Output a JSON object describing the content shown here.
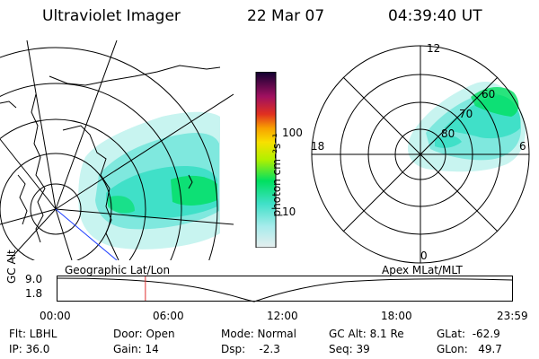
{
  "header": {
    "title": "Ultraviolet Imager",
    "date": "22 Mar 07",
    "time": "04:39:40 UT"
  },
  "colorbar": {
    "unit_label": "photon cm⁻²s⁻¹",
    "ticks": [
      "100",
      "10"
    ]
  },
  "polar_plot": {
    "mlt_labels": {
      "top": "12",
      "left": "18",
      "right": "6",
      "bottom": "0"
    },
    "mlat_labels": [
      "60",
      "70",
      "80"
    ]
  },
  "altitude_panel": {
    "axis_label": "GC Alt",
    "y_ticks": [
      "9.0",
      "1.8"
    ],
    "left_title": "Geographic Lat/Lon",
    "right_title": "Apex MLat/MLT",
    "time_ticks": [
      "00:00",
      "06:00",
      "12:00",
      "18:00",
      "23:59"
    ],
    "current_time_fraction": 0.194
  },
  "info": {
    "flt": "Flt: LBHL",
    "ip": "IP: 36.0",
    "door": "Door: Open",
    "gain": "Gain: 14",
    "mode": "Mode: Normal",
    "dsp": "Dsp:    -2.3",
    "gcalt": "GC Alt: 8.1 Re",
    "seq": "Seq: 39",
    "glat": "GLat:  -62.9",
    "glon": "GLon:   49.7"
  },
  "colors": {
    "aurora_core": "#00e060",
    "aurora_mid": "#40e0c8",
    "aurora_low": "#c8f4f0",
    "marker": "#e03030",
    "track": "#2040ff"
  }
}
